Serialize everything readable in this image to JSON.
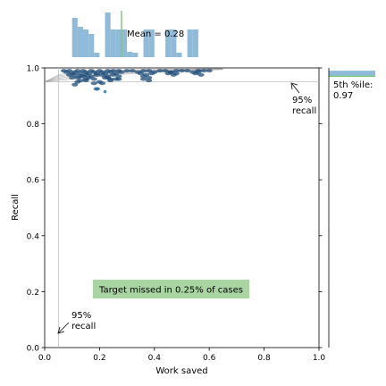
{
  "chart_data": {
    "type": "scatter",
    "xlabel": "Work saved",
    "ylabel": "Recall",
    "xlim": [
      0,
      1
    ],
    "ylim": [
      0,
      1
    ],
    "xticks": [
      "0.0",
      "0.2",
      "0.4",
      "0.6",
      "0.8",
      "1.0"
    ],
    "yticks": [
      "0.0",
      "0.2",
      "0.4",
      "0.6",
      "0.8",
      "1.0"
    ],
    "grid": false,
    "reference_lines": {
      "vertical_x": 0.05,
      "horizontal_y": 0.95
    },
    "annotations": {
      "bottom_recall": "95%\nrecall",
      "right_recall": "95%\nrecall",
      "target_missed": "Target missed in 0.25% of cases",
      "top_mean": "Mean = 0.28",
      "side_percentile": "5th %ile:\n0.97"
    },
    "colors": {
      "points": "#1f77b4",
      "points_dark": "#1f4e79",
      "histogram": "#8fbbd9",
      "mean_line": "#7fc97f",
      "target_box": "#a8d5a2",
      "ref_line": "#bfbfbf",
      "curve": "#9a9a9a"
    },
    "mean_x": 0.28,
    "percentile_y": 0.97,
    "top_histogram": {
      "bin_edges": [
        0.0,
        0.02,
        0.04,
        0.06,
        0.08,
        0.1,
        0.12,
        0.14,
        0.16,
        0.18,
        0.2,
        0.22,
        0.24,
        0.26,
        0.28,
        0.3,
        0.32,
        0.34,
        0.36,
        0.38,
        0.4,
        0.42,
        0.44,
        0.46,
        0.48,
        0.5,
        0.52,
        0.54,
        0.56,
        0.58,
        0.6
      ],
      "counts": [
        0,
        0,
        0,
        0,
        0,
        0.88,
        0.68,
        0.62,
        0.52,
        0.1,
        0,
        1.0,
        0.62,
        0.62,
        0.62,
        0.12,
        0.1,
        0,
        0.62,
        0.62,
        0,
        0,
        0.62,
        0.62,
        0.1,
        0,
        0.62,
        0.62,
        0,
        0
      ]
    },
    "series": [
      {
        "x": [
          0.07,
          0.08,
          0.09,
          0.1,
          0.11,
          0.12,
          0.13,
          0.14,
          0.15,
          0.16,
          0.17,
          0.18,
          0.19,
          0.2,
          0.21,
          0.22,
          0.23,
          0.24,
          0.25,
          0.26,
          0.27,
          0.28,
          0.3,
          0.32,
          0.34,
          0.36,
          0.38,
          0.4,
          0.42,
          0.44,
          0.46,
          0.48,
          0.5,
          0.52,
          0.54,
          0.56,
          0.58,
          0.6,
          0.09,
          0.11,
          0.13,
          0.15,
          0.17,
          0.19,
          0.21,
          0.23,
          0.25,
          0.27,
          0.35,
          0.37,
          0.39,
          0.45,
          0.47,
          0.55,
          0.57,
          0.1,
          0.12,
          0.14,
          0.16,
          0.18,
          0.22,
          0.24,
          0.26,
          0.36,
          0.38,
          0.46,
          0.48,
          0.56,
          0.13,
          0.15,
          0.2,
          0.23,
          0.24,
          0.27,
          0.36,
          0.38,
          0.11,
          0.19,
          0.21,
          0.12,
          0.15,
          0.18
        ],
        "y": [
          0.99,
          0.985,
          0.99,
          0.98,
          0.985,
          0.99,
          0.98,
          0.99,
          0.985,
          0.98,
          0.99,
          0.985,
          0.98,
          0.99,
          0.985,
          0.98,
          0.99,
          0.985,
          0.99,
          0.98,
          0.99,
          0.985,
          0.99,
          0.99,
          0.985,
          0.99,
          0.99,
          0.985,
          0.99,
          0.99,
          0.985,
          0.99,
          0.99,
          0.99,
          0.985,
          0.99,
          0.99,
          0.99,
          0.975,
          0.975,
          0.97,
          0.975,
          0.97,
          0.975,
          0.975,
          0.97,
          0.975,
          0.97,
          0.98,
          0.975,
          0.98,
          0.98,
          0.975,
          0.98,
          0.975,
          0.965,
          0.965,
          0.97,
          0.965,
          0.96,
          0.965,
          0.96,
          0.96,
          0.97,
          0.965,
          0.985,
          0.98,
          0.985,
          0.955,
          0.96,
          0.95,
          0.965,
          0.955,
          0.96,
          0.96,
          0.955,
          0.94,
          0.925,
          0.945,
          0.95,
          0.955,
          0.945
        ]
      }
    ],
    "outliers": {
      "x": [
        0.19,
        0.22
      ],
      "y": [
        0.925,
        0.915
      ]
    },
    "curves": {
      "x": [
        0.0,
        0.05,
        0.1,
        0.2,
        0.3,
        0.4,
        0.5,
        0.6,
        0.65
      ],
      "upper": [
        0.95,
        0.975,
        0.985,
        0.99,
        0.993,
        0.995,
        0.996,
        0.997,
        0.998
      ],
      "lower": [
        0.95,
        0.955,
        0.96,
        0.97,
        0.978,
        0.984,
        0.988,
        0.992,
        0.994
      ]
    }
  }
}
